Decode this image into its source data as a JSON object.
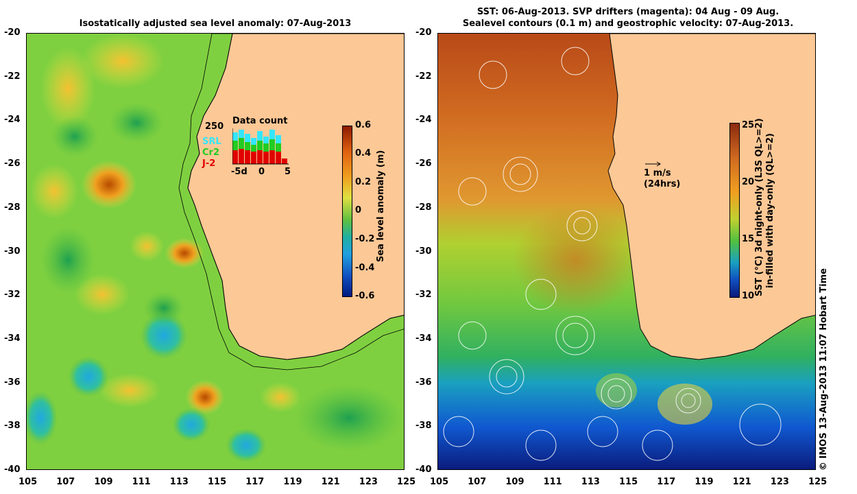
{
  "left_panel": {
    "title": "Isostatically adjusted sea level anomaly: 07-Aug-2013",
    "y_ticks": [
      "-20",
      "-22",
      "-24",
      "-26",
      "-28",
      "-30",
      "-32",
      "-34",
      "-36",
      "-38",
      "-40"
    ],
    "x_ticks": [
      "105",
      "107",
      "109",
      "111",
      "113",
      "115",
      "117",
      "119",
      "121",
      "123",
      "125"
    ],
    "colorbar": {
      "label": "Sea level anomaly (m)",
      "ticks": [
        "0.6",
        "0.4",
        "0.2",
        "0",
        "-0.2",
        "-0.4",
        "-0.6"
      ]
    },
    "inset": {
      "title": "Data count",
      "y_max": "250",
      "series": [
        {
          "name": "SRL",
          "color": "#33e6ff"
        },
        {
          "name": "Cr2",
          "color": "#22cc22"
        },
        {
          "name": "J-2",
          "color": "#e00000"
        }
      ],
      "x_ticks": [
        "-5d",
        "0",
        "5"
      ]
    }
  },
  "right_panel": {
    "title_line1": "SST: 06-Aug-2013. SVP drifters (magenta): 04 Aug - 09 Aug.",
    "title_line2": "Sealevel contours (0.1 m) and geostrophic velocity: 07-Aug-2013.",
    "y_ticks": [
      "-20",
      "-22",
      "-24",
      "-26",
      "-28",
      "-30",
      "-32",
      "-34",
      "-36",
      "-38",
      "-40"
    ],
    "x_ticks": [
      "105",
      "107",
      "109",
      "111",
      "113",
      "115",
      "117",
      "119",
      "121",
      "123",
      "125"
    ],
    "scale_arrow_label": "1 m/s",
    "scale_arrow_sub": "(24hrs)",
    "colorbar": {
      "label_line1": "SST (°C)  3d night-only (L3S QL>=2)",
      "label_line2": "in-filled with day-only (QL>=2)",
      "ticks": [
        "25",
        "20",
        "15",
        "10"
      ]
    }
  },
  "credit": "© IMOS 13-Aug-2013 11:07 Hobart Time",
  "colors": {
    "land": "#fcc896",
    "sla_low": "#001a80",
    "sla_high": "#8b1a00",
    "sst_low": "#0a1a7a",
    "sst_high": "#8b2a10"
  }
}
